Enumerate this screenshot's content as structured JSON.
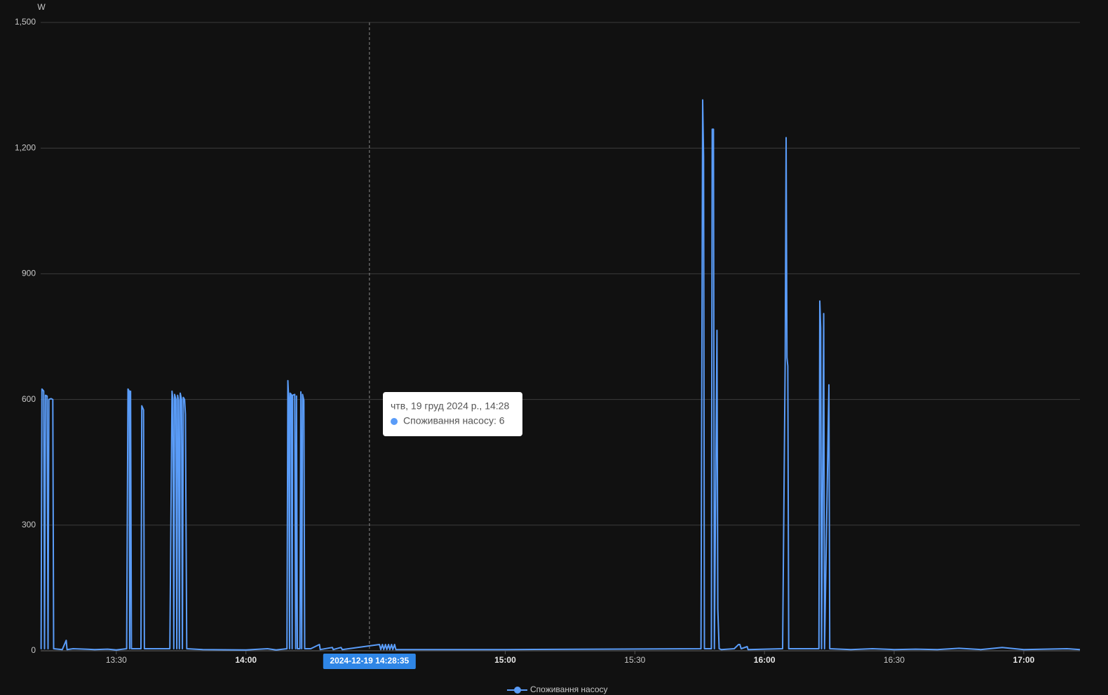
{
  "chart_data": {
    "type": "line",
    "y_unit": "W",
    "xlim": [
      792.5,
      1033
    ],
    "ylim": [
      0,
      1500
    ],
    "xticks": [
      {
        "value": 810,
        "label": "13:30"
      },
      {
        "value": 840,
        "label": "14:00"
      },
      {
        "value": 900,
        "label": "15:00"
      },
      {
        "value": 930,
        "label": "15:30"
      },
      {
        "value": 960,
        "label": "16:00"
      },
      {
        "value": 990,
        "label": "16:30"
      },
      {
        "value": 1020,
        "label": "17:00"
      }
    ],
    "yticks": [
      0,
      300,
      600,
      900,
      {
        "value": 1200,
        "label": "1,200"
      },
      {
        "value": 1500,
        "label": "1,500"
      }
    ],
    "grid": true,
    "series": [
      {
        "name": "Споживання насосу",
        "color": "#5a9cf8",
        "x": [
          792.5,
          792.6,
          792.8,
          793.2,
          793.4,
          793.6,
          794.0,
          794.2,
          794.4,
          794.9,
          795.3,
          795.5,
          797.5,
          798.4,
          798.6,
          800,
          805,
          808,
          810,
          812.4,
          812.7,
          813.0,
          813.1,
          813.3,
          813.5,
          815.7,
          815.9,
          816.3,
          816.5,
          822.4,
          822.9,
          823.1,
          823.3,
          823.5,
          823.8,
          824.0,
          824.2,
          824.4,
          824.6,
          824.8,
          825.1,
          825.3,
          825.5,
          825.8,
          826.0,
          826.3,
          830,
          840,
          845,
          847,
          849.5,
          849.7,
          849.9,
          850.1,
          850.2,
          850.5,
          850.7,
          850.8,
          851.3,
          851.5,
          851.7,
          851.9,
          852.5,
          852.7,
          852.9,
          853.1,
          853.4,
          853.6,
          855,
          857,
          857.2,
          860,
          860.2,
          862,
          862.3,
          870.9,
          871.2,
          871.6,
          871.9,
          872.3,
          872.6,
          873.0,
          873.3,
          873.7,
          874.0,
          874.4,
          874.7,
          875,
          900,
          945.3,
          945.7,
          945.9,
          946.1,
          947.7,
          947.9,
          948.2,
          948.4,
          949.0,
          949.2,
          949.5,
          950,
          953,
          954,
          954.3,
          954.6,
          956,
          956.2,
          964.2,
          964.8,
          965.0,
          965.2,
          965.4,
          965.6,
          972.6,
          972.8,
          973.0,
          973.2,
          973.7,
          973.9,
          974.9,
          975.1,
          980,
          985,
          990,
          995,
          1000,
          1005,
          1010,
          1015,
          1020,
          1025,
          1030,
          1033
        ],
        "values": [
          5,
          5,
          625,
          620,
          5,
          610,
          608,
          5,
          600,
          602,
          600,
          5,
          3,
          25,
          3,
          5,
          3,
          4,
          2,
          5,
          625,
          620,
          5,
          620,
          5,
          5,
          585,
          575,
          5,
          5,
          620,
          600,
          5,
          612,
          600,
          5,
          610,
          598,
          5,
          615,
          600,
          5,
          605,
          600,
          565,
          5,
          3,
          2,
          5,
          2,
          5,
          645,
          600,
          5,
          615,
          612,
          5,
          610,
          612,
          5,
          608,
          5,
          5,
          618,
          5,
          612,
          598,
          5,
          5,
          15,
          3,
          8,
          3,
          8,
          3,
          15,
          3,
          15,
          3,
          15,
          3,
          15,
          3,
          15,
          3,
          15,
          3,
          3,
          3,
          5,
          1315,
          1180,
          5,
          5,
          1245,
          1245,
          5,
          765,
          100,
          5,
          3,
          5,
          15,
          15,
          5,
          10,
          3,
          5,
          700,
          1225,
          700,
          680,
          5,
          5,
          835,
          770,
          5,
          805,
          5,
          635,
          5,
          3,
          5,
          3,
          4,
          3,
          6,
          3,
          8,
          3,
          4,
          5,
          3
        ]
      }
    ],
    "cursor": {
      "x": 868.58,
      "label": "2024-12-19 14:28:35"
    },
    "tooltip": {
      "title": "чтв, 19 груд 2024 р., 14:28",
      "text": "Споживання насосу: 6"
    }
  }
}
